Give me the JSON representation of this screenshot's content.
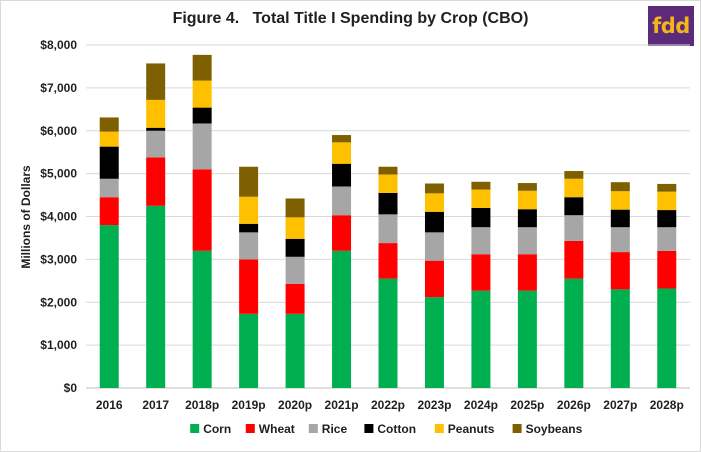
{
  "title": "Figure 4.   Total Title I Spending by Crop (CBO)",
  "logo_text": "fdd",
  "chart_data": {
    "type": "bar",
    "stacked": true,
    "title": "Figure 4.   Total Title I Spending by Crop (CBO)",
    "ylabel": "Millions of Dollars",
    "xlabel": "",
    "ylim": [
      0,
      8000
    ],
    "yticks": [
      0,
      1000,
      2000,
      3000,
      4000,
      5000,
      6000,
      7000,
      8000
    ],
    "ytick_labels": [
      "$0",
      "$1,000",
      "$2,000",
      "$3,000",
      "$4,000",
      "$5,000",
      "$6,000",
      "$7,000",
      "$8,000"
    ],
    "grid": true,
    "legend_position": "bottom",
    "categories": [
      "2016",
      "2017",
      "2018p",
      "2019p",
      "2020p",
      "2021p",
      "2022p",
      "2023p",
      "2024p",
      "2025p",
      "2026p",
      "2027p",
      "2028p"
    ],
    "series": [
      {
        "name": "Corn",
        "color": "#00b050",
        "values": [
          3800,
          4250,
          3200,
          1730,
          1730,
          3200,
          2550,
          2120,
          2270,
          2270,
          2550,
          2300,
          2320
        ]
      },
      {
        "name": "Wheat",
        "color": "#ff0000",
        "values": [
          650,
          1130,
          1900,
          1270,
          700,
          830,
          830,
          850,
          850,
          850,
          880,
          870,
          880
        ]
      },
      {
        "name": "Rice",
        "color": "#a6a6a6",
        "values": [
          430,
          620,
          1070,
          630,
          630,
          670,
          670,
          660,
          630,
          630,
          600,
          580,
          550
        ]
      },
      {
        "name": "Cotton",
        "color": "#000000",
        "values": [
          750,
          70,
          370,
          200,
          420,
          530,
          500,
          480,
          450,
          420,
          420,
          410,
          400
        ]
      },
      {
        "name": "Peanuts",
        "color": "#ffc000",
        "values": [
          350,
          650,
          630,
          630,
          500,
          500,
          430,
          430,
          430,
          430,
          430,
          430,
          430
        ]
      },
      {
        "name": "Soybeans",
        "color": "#7f6000",
        "values": [
          330,
          850,
          600,
          700,
          440,
          170,
          180,
          230,
          180,
          180,
          180,
          210,
          180
        ]
      }
    ]
  }
}
